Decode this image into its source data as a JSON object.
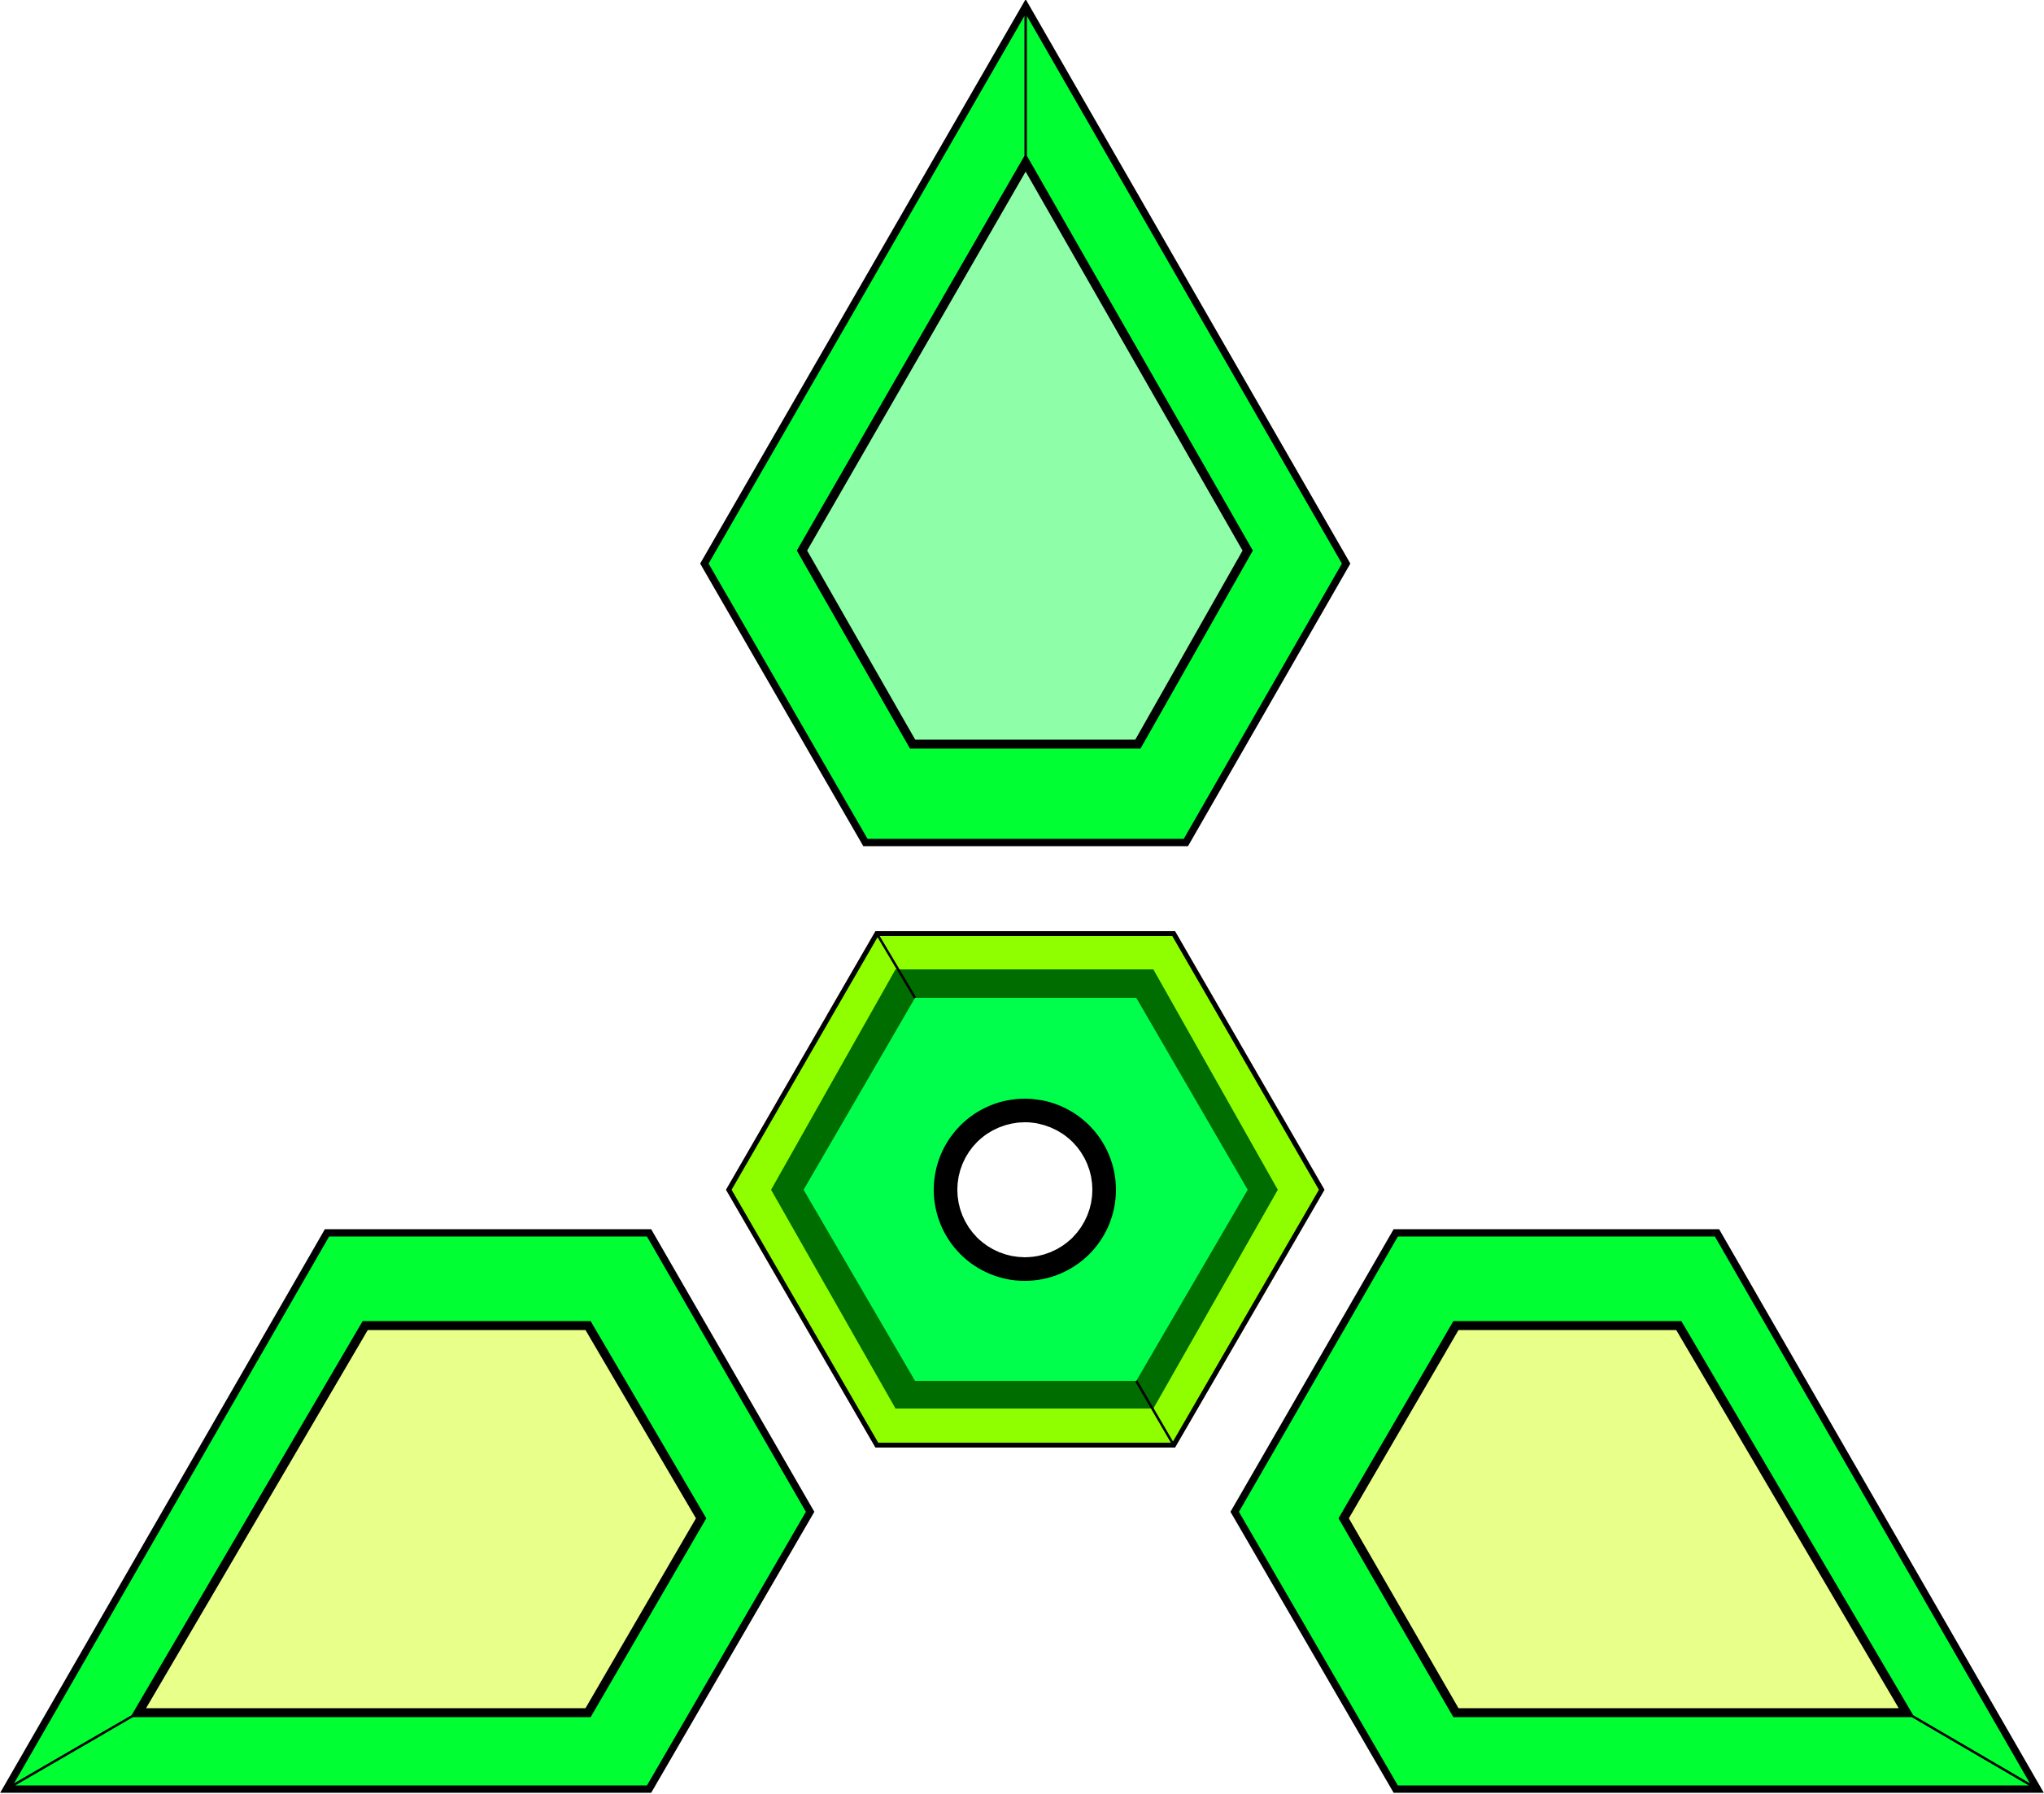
{
  "figure": {
    "background_color": "#ffffff",
    "outline_color": "#000000",
    "shapes": [
      {
        "name": "top-pentagon-shape",
        "outer_fill": "#00ff33",
        "inner_fill": "#8effa8"
      },
      {
        "name": "center-hexagon-shape",
        "outer_fill": "#8fff00",
        "ring_fill": "#006d00",
        "inner_fill": "#00ff4c",
        "center_ring_color": "#000000",
        "center_hole_fill": "#ffffff"
      },
      {
        "name": "left-trapezoid-shape",
        "outer_fill": "#00ff33",
        "inner_fill": "#e8ff89"
      },
      {
        "name": "right-trapezoid-shape",
        "outer_fill": "#00ff33",
        "inner_fill": "#e8ff89"
      }
    ]
  }
}
